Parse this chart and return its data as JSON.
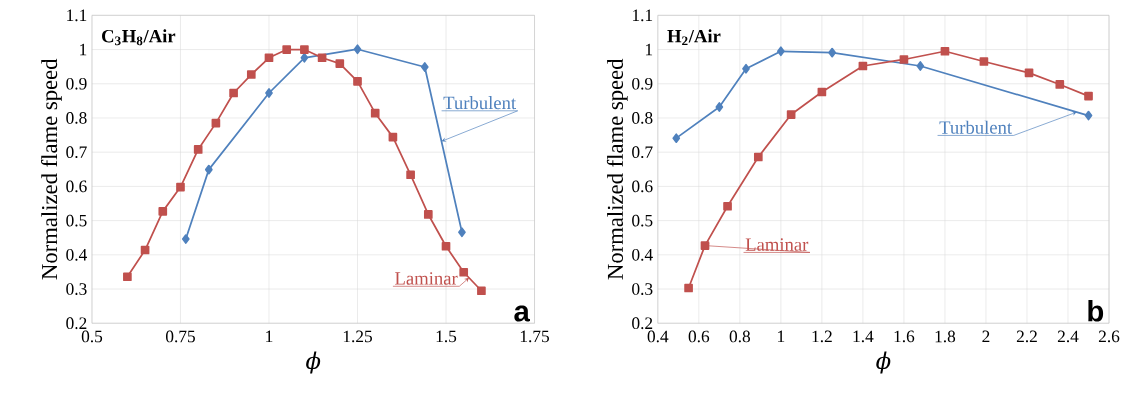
{
  "chart_data": [
    {
      "type": "line",
      "xlabel": "ϕ",
      "ylabel": "Normalized flame speed",
      "annotations": [
        "C$_{3}$H$_{8}$/Air",
        "a"
      ],
      "xlim": [
        0.5,
        1.75
      ],
      "xticks": [
        0.5,
        0.75,
        1,
        1.25,
        1.5,
        1.75
      ],
      "ylim": [
        0.2,
        1.1
      ],
      "yticks": [
        0.2,
        0.3,
        0.4,
        0.5,
        0.6,
        0.7,
        0.8,
        0.9,
        1,
        1.1
      ],
      "grid": true,
      "series": [
        {
          "name": "Turbulent",
          "color": "#4f81bd",
          "marker": "diamond",
          "x": [
            0.765,
            0.83,
            1.0,
            1.1,
            1.25,
            1.44,
            1.545
          ],
          "values": [
            0.446,
            0.649,
            0.873,
            0.976,
            1.001,
            0.949,
            0.466
          ]
        },
        {
          "name": "Laminar",
          "color": "#c0504d",
          "marker": "square",
          "x": [
            0.6,
            0.65,
            0.7,
            0.75,
            0.8,
            0.85,
            0.9,
            0.95,
            1.0,
            1.05,
            1.1,
            1.15,
            1.2,
            1.25,
            1.3,
            1.35,
            1.4,
            1.45,
            1.5,
            1.55,
            1.6
          ],
          "values": [
            0.336,
            0.414,
            0.527,
            0.598,
            0.708,
            0.785,
            0.873,
            0.927,
            0.976,
            1.0,
            1.0,
            0.976,
            0.959,
            0.907,
            0.814,
            0.744,
            0.634,
            0.518,
            0.425,
            0.349,
            0.295
          ]
        }
      ]
    },
    {
      "type": "line",
      "xlabel": "ϕ",
      "ylabel": "Normalized flame speed",
      "annotations": [
        "H$_{2}$/Air",
        "b"
      ],
      "xlim": [
        0.4,
        2.6
      ],
      "xticks": [
        0.4,
        0.6,
        0.8,
        1,
        1.2,
        1.4,
        1.6,
        1.8,
        2,
        2.2,
        2.4,
        2.6
      ],
      "ylim": [
        0.2,
        1.1
      ],
      "yticks": [
        0.2,
        0.3,
        0.4,
        0.5,
        0.6,
        0.7,
        0.8,
        0.9,
        1,
        1.1
      ],
      "grid": true,
      "series": [
        {
          "name": "Turbulent",
          "color": "#4f81bd",
          "marker": "diamond",
          "x": [
            0.49,
            0.7,
            0.83,
            1.0,
            1.25,
            1.68,
            2.5
          ],
          "values": [
            0.741,
            0.832,
            0.944,
            0.995,
            0.991,
            0.952,
            0.807
          ]
        },
        {
          "name": "Laminar",
          "color": "#c0504d",
          "marker": "square",
          "x": [
            0.55,
            0.63,
            0.74,
            0.89,
            1.05,
            1.2,
            1.4,
            1.6,
            1.8,
            1.99,
            2.21,
            2.36,
            2.5
          ],
          "values": [
            0.303,
            0.427,
            0.542,
            0.686,
            0.81,
            0.876,
            0.952,
            0.971,
            0.995,
            0.965,
            0.932,
            0.898,
            0.864
          ]
        }
      ]
    }
  ]
}
